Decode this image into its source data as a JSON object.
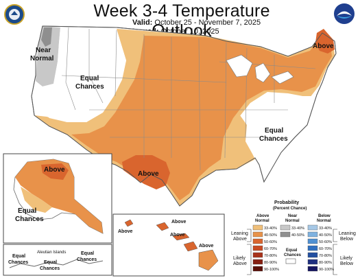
{
  "header": {
    "title": "Week 3-4 Temperature Outlook",
    "valid_label": "Valid:",
    "valid_dates": "October 25 - November 7, 2025",
    "issued_label": "Issued:",
    "issued_date": "October 10, 2025"
  },
  "logos": {
    "left": "NWS / Department of Commerce seal",
    "right": "NOAA logo"
  },
  "map_labels": {
    "near_normal_1": "Near",
    "near_normal_2": "Normal",
    "equal_chances_west_1": "Equal",
    "equal_chances_west_2": "Chances",
    "above_maine": "Above",
    "above_texas": "Above",
    "equal_chances_east_1": "Equal",
    "equal_chances_east_2": "Chances",
    "alaska_above": "Above",
    "alaska_equal_1": "Equal",
    "alaska_equal_2": "Chances",
    "aleutian_title": "Aleutian Islands",
    "aleutian_equal_a1": "Equal",
    "aleutian_equal_a2": "Chances",
    "aleutian_equal_b1": "Equal",
    "aleutian_equal_b2": "Chances",
    "aleutian_equal_c1": "Equal",
    "aleutian_equal_c2": "Chances",
    "hawaii_above_1": "Above",
    "hawaii_above_2": "Above",
    "hawaii_above_3": "Above",
    "hawaii_above_4": "Above"
  },
  "legend": {
    "title_1": "Probability",
    "title_2": "(Percent Chance)",
    "above_header_1": "Above",
    "above_header_2": "Normal",
    "near_header_1": "Near",
    "near_header_2": "Normal",
    "below_header_1": "Below",
    "below_header_2": "Normal",
    "above_bins": [
      "33-40%",
      "40-50%",
      "50-60%",
      "60-70%",
      "70-80%",
      "80-90%",
      "90-100%"
    ],
    "near_bins": [
      "33-40%",
      "40-50%"
    ],
    "below_bins": [
      "33-40%",
      "40-50%",
      "50-60%",
      "60-70%",
      "70-80%",
      "80-90%",
      "90-100%"
    ],
    "equal_chances_1": "Equal",
    "equal_chances_2": "Chances",
    "leaning_above_1": "Leaning",
    "leaning_above_2": "Above",
    "likely_above_1": "Likely",
    "likely_above_2": "Above",
    "leaning_below_1": "Leaning",
    "leaning_below_2": "Below",
    "likely_below_1": "Likely",
    "likely_below_2": "Below"
  },
  "colors": {
    "above_33_40": "#f0c07a",
    "above_40_50": "#e8924a",
    "above_50_60": "#d9652e",
    "above_60_70": "#c84a22",
    "above_70_80": "#a8321a",
    "above_80_90": "#861f12",
    "above_90_100": "#5a0f08",
    "near_33_40": "#c8c8c8",
    "near_40_50": "#8f8f8f",
    "below_33_40": "#a6c8e6",
    "below_40_50": "#7fb2e0",
    "below_50_60": "#4f90d2",
    "below_60_70": "#2f6fc0",
    "below_70_80": "#224fa0",
    "below_80_90": "#1e2f80",
    "below_90_100": "#151560",
    "border": "#777777"
  }
}
